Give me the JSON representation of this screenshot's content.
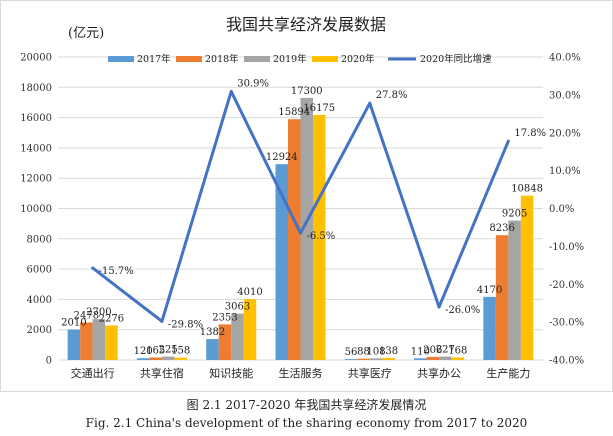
{
  "chart_data": {
    "type": "bar",
    "title": "我国共享经济发展数据",
    "ylabel": "(亿元)",
    "categories": [
      "交通出行",
      "共享住宿",
      "知识技能",
      "生活服务",
      "共享医疗",
      "共享办公",
      "生产能力"
    ],
    "series": [
      {
        "name": "2017年",
        "color": "#5b9bd5",
        "values": [
          2010,
          120,
          1382,
          12924,
          56,
          110,
          4170
        ]
      },
      {
        "name": "2018年",
        "color": "#ed7d31",
        "values": [
          2478,
          165,
          2353,
          15894,
          88,
          206,
          8236
        ]
      },
      {
        "name": "2019年",
        "color": "#a5a5a5",
        "values": [
          2700,
          225,
          3063,
          17300,
          108,
          227,
          9205
        ]
      },
      {
        "name": "2020年",
        "color": "#ffc000",
        "values": [
          2276,
          158,
          4010,
          16175,
          138,
          168,
          10848
        ]
      }
    ],
    "line_series": {
      "name": "2020年同比增速",
      "color": "#4472c4",
      "values": [
        -15.7,
        -29.8,
        30.9,
        -6.5,
        27.8,
        -26.0,
        17.8
      ],
      "labels": [
        "-15.7%",
        "-29.8%",
        "30.9%",
        "-6.5%",
        "27.8%",
        "-26.0%",
        "17.8%"
      ]
    },
    "ylim": [
      0,
      20000
    ],
    "y_ticks": [
      "0",
      "2000",
      "4000",
      "6000",
      "8000",
      "10000",
      "12000",
      "14000",
      "16000",
      "18000",
      "20000"
    ],
    "y2lim": [
      -40,
      40
    ],
    "y2_ticks": [
      "-40.0%",
      "-30.0%",
      "-20.0%",
      "-10.0%",
      "0.0%",
      "10.0%",
      "20.0%",
      "30.0%",
      "40.0%"
    ],
    "legend_position": "top"
  },
  "caption": {
    "cn": "图 2.1    2017-2020 年我国共享经济发展情况",
    "en": "Fig. 2.1    China's development of the sharing economy from 2017 to 2020"
  }
}
